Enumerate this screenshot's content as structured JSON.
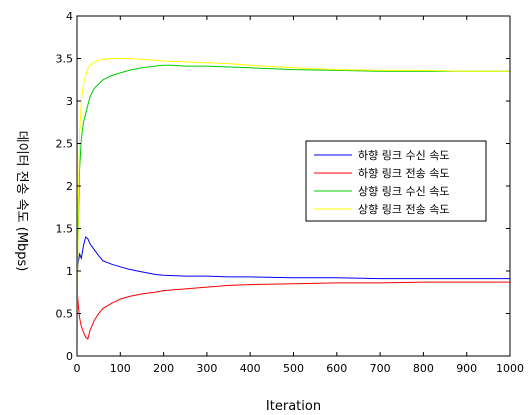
{
  "chart_data": {
    "type": "line",
    "xlabel": "Iteration",
    "ylabel": "데이터 전송 속도 (Mbps)",
    "xlim": [
      0,
      1000
    ],
    "ylim": [
      0,
      4
    ],
    "xticks": [
      0,
      100,
      200,
      300,
      400,
      500,
      600,
      700,
      800,
      900,
      1000
    ],
    "yticks": [
      0,
      0.5,
      1,
      1.5,
      2,
      2.5,
      3,
      3.5,
      4
    ],
    "ytick_labels": [
      "0",
      "0.5",
      "1",
      "1.5",
      "2",
      "2.5",
      "3",
      "3.5",
      "4"
    ],
    "grid": false,
    "legend_position": "right",
    "series": [
      {
        "name": "하향 링크 수신 속도",
        "color": "#0000ff",
        "x": [
          0,
          3,
          6,
          10,
          15,
          20,
          25,
          30,
          40,
          50,
          60,
          80,
          100,
          120,
          150,
          180,
          200,
          250,
          300,
          350,
          400,
          500,
          600,
          700,
          800,
          900,
          1000
        ],
        "y": [
          0.95,
          1.1,
          1.2,
          1.15,
          1.3,
          1.4,
          1.38,
          1.32,
          1.25,
          1.18,
          1.12,
          1.08,
          1.05,
          1.02,
          0.99,
          0.96,
          0.95,
          0.94,
          0.94,
          0.93,
          0.93,
          0.92,
          0.92,
          0.91,
          0.91,
          0.91,
          0.91
        ]
      },
      {
        "name": "하향 링크 전송 속도",
        "color": "#ff0000",
        "x": [
          0,
          3,
          6,
          10,
          15,
          20,
          25,
          30,
          40,
          50,
          60,
          80,
          100,
          120,
          150,
          180,
          200,
          250,
          300,
          350,
          400,
          500,
          600,
          700,
          800,
          900,
          1000
        ],
        "y": [
          0.8,
          0.6,
          0.45,
          0.35,
          0.28,
          0.22,
          0.2,
          0.3,
          0.42,
          0.5,
          0.56,
          0.62,
          0.67,
          0.7,
          0.73,
          0.75,
          0.77,
          0.79,
          0.81,
          0.83,
          0.84,
          0.85,
          0.86,
          0.86,
          0.87,
          0.87,
          0.87
        ]
      },
      {
        "name": "상향 링크 수신 속도",
        "color": "#00cc00",
        "x": [
          0,
          3,
          6,
          10,
          15,
          20,
          25,
          30,
          40,
          50,
          60,
          80,
          100,
          120,
          150,
          180,
          200,
          220,
          250,
          300,
          350,
          400,
          500,
          600,
          700,
          800,
          900,
          1000
        ],
        "y": [
          0.7,
          1.5,
          2.2,
          2.55,
          2.75,
          2.85,
          2.95,
          3.05,
          3.15,
          3.2,
          3.25,
          3.3,
          3.33,
          3.36,
          3.39,
          3.41,
          3.42,
          3.42,
          3.41,
          3.41,
          3.4,
          3.39,
          3.37,
          3.36,
          3.35,
          3.35,
          3.35,
          3.35
        ]
      },
      {
        "name": "상향 링크 전송 속도",
        "color": "#ffff00",
        "x": [
          0,
          3,
          6,
          10,
          15,
          20,
          25,
          30,
          40,
          50,
          60,
          80,
          100,
          120,
          150,
          180,
          200,
          250,
          300,
          350,
          400,
          500,
          600,
          700,
          800,
          900,
          1000
        ],
        "y": [
          0.05,
          1.8,
          2.6,
          3.0,
          3.2,
          3.3,
          3.38,
          3.42,
          3.46,
          3.48,
          3.49,
          3.5,
          3.5,
          3.5,
          3.49,
          3.48,
          3.47,
          3.46,
          3.45,
          3.44,
          3.42,
          3.39,
          3.37,
          3.36,
          3.36,
          3.35,
          3.35
        ]
      }
    ]
  }
}
